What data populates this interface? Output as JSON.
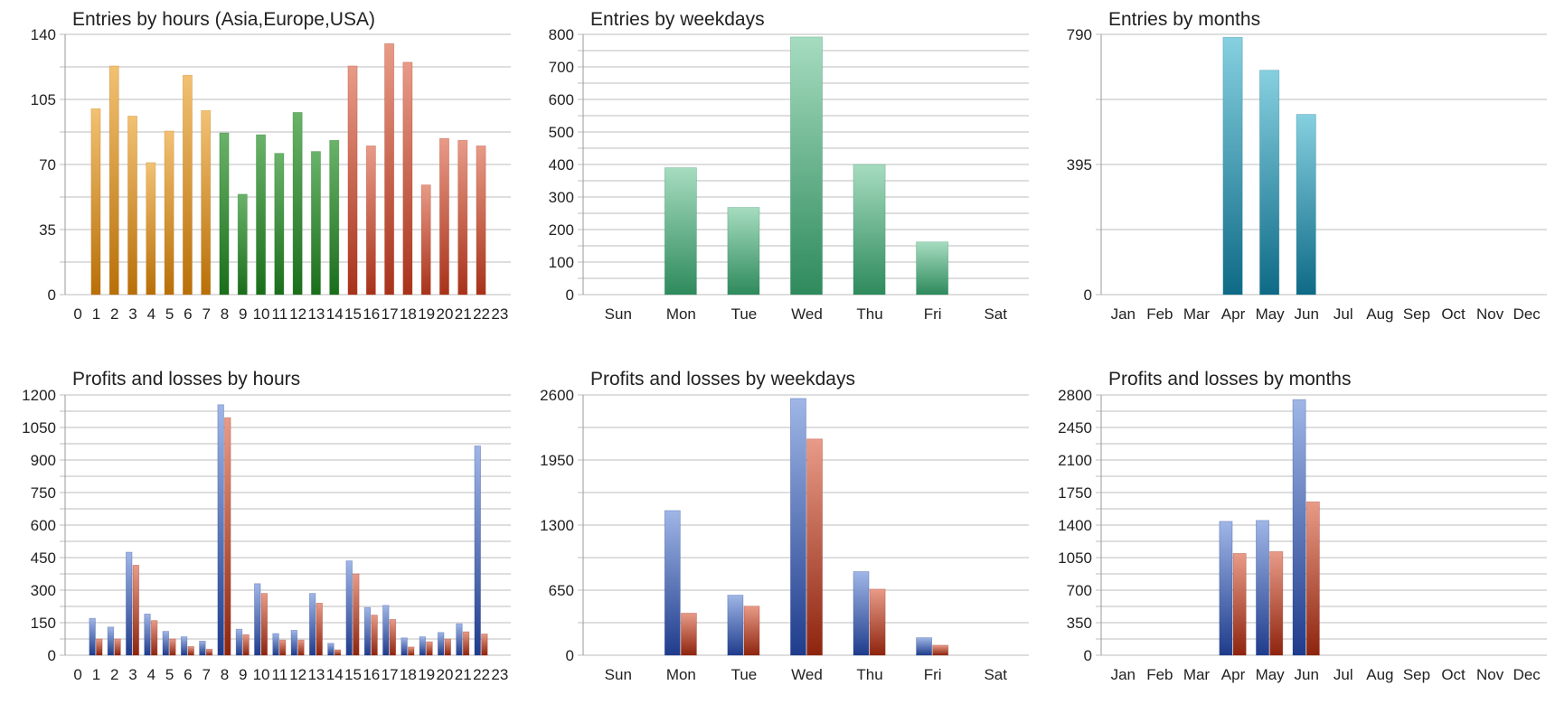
{
  "chart_data": [
    {
      "id": "entries-hours",
      "type": "bar",
      "title": "Entries by hours (Asia,Europe,USA)",
      "categories": [
        "0",
        "1",
        "2",
        "3",
        "4",
        "5",
        "6",
        "7",
        "8",
        "9",
        "10",
        "11",
        "12",
        "13",
        "14",
        "15",
        "16",
        "17",
        "18",
        "19",
        "20",
        "21",
        "22",
        "23"
      ],
      "series": [
        {
          "values": [
            0,
            100,
            123,
            96,
            71,
            88,
            118,
            99,
            87,
            54,
            86,
            76,
            98,
            77,
            83,
            123,
            80,
            135,
            125,
            59,
            84,
            83,
            80,
            0
          ]
        }
      ],
      "category_colors": [
        "#f2c173",
        "#f2c173",
        "#f2c173",
        "#f2c173",
        "#f2c173",
        "#f2c173",
        "#f2c173",
        "#f2c173",
        "#6ab36a",
        "#6ab36a",
        "#6ab36a",
        "#6ab36a",
        "#6ab36a",
        "#6ab36a",
        "#6ab36a",
        "#e89b88",
        "#e89b88",
        "#e89b88",
        "#e89b88",
        "#e89b88",
        "#e89b88",
        "#e89b88",
        "#e89b88",
        "#e89b88"
      ],
      "category_colors_dark": [
        "#b86f08",
        "#b86f08",
        "#b86f08",
        "#b86f08",
        "#b86f08",
        "#b86f08",
        "#b86f08",
        "#b86f08",
        "#1a6e1a",
        "#1a6e1a",
        "#1a6e1a",
        "#1a6e1a",
        "#1a6e1a",
        "#1a6e1a",
        "#1a6e1a",
        "#a8321a",
        "#a8321a",
        "#a8321a",
        "#a8321a",
        "#a8321a",
        "#a8321a",
        "#a8321a",
        "#a8321a",
        "#a8321a"
      ],
      "yticks": [
        0,
        35,
        70,
        105,
        140
      ],
      "ylim": [
        0,
        140
      ],
      "grid": true
    },
    {
      "id": "entries-weekdays",
      "type": "bar",
      "title": "Entries by weekdays",
      "categories": [
        "Sun",
        "Mon",
        "Tue",
        "Wed",
        "Thu",
        "Fri",
        "Sat"
      ],
      "series": [
        {
          "values": [
            0,
            390,
            268,
            792,
            400,
            162,
            0
          ],
          "color_top": "#a6dcc0",
          "color_bottom": "#2e8a5c"
        }
      ],
      "yticks": [
        0,
        100,
        200,
        300,
        400,
        500,
        600,
        700,
        800
      ],
      "ylim": [
        0,
        800
      ],
      "grid": true
    },
    {
      "id": "entries-months",
      "type": "bar",
      "title": "Entries by months",
      "categories": [
        "Jan",
        "Feb",
        "Mar",
        "Apr",
        "May",
        "Jun",
        "Jul",
        "Aug",
        "Sep",
        "Oct",
        "Nov",
        "Dec"
      ],
      "series": [
        {
          "values": [
            0,
            0,
            0,
            781,
            681,
            547,
            0,
            0,
            0,
            0,
            0,
            0
          ],
          "color_top": "#86d0e0",
          "color_bottom": "#0e6a86"
        }
      ],
      "yticks": [
        0,
        395,
        790
      ],
      "ylim": [
        0,
        790
      ],
      "grid": true
    },
    {
      "id": "pl-hours",
      "type": "bar",
      "title": "Profits and losses by hours",
      "categories": [
        "0",
        "1",
        "2",
        "3",
        "4",
        "5",
        "6",
        "7",
        "8",
        "9",
        "10",
        "11",
        "12",
        "13",
        "14",
        "15",
        "16",
        "17",
        "18",
        "19",
        "20",
        "21",
        "22",
        "23"
      ],
      "series": [
        {
          "values": [
            0,
            170,
            130,
            475,
            190,
            110,
            85,
            65,
            1155,
            120,
            330,
            100,
            115,
            285,
            55,
            435,
            220,
            230,
            80,
            85,
            105,
            145,
            965,
            0
          ],
          "color_top": "#9fb6e6",
          "color_bottom": "#1f3c8c"
        },
        {
          "values": [
            0,
            75,
            75,
            415,
            160,
            75,
            40,
            28,
            1095,
            95,
            285,
            70,
            70,
            240,
            25,
            375,
            185,
            165,
            38,
            62,
            75,
            108,
            98,
            0
          ],
          "color_top": "#e89b88",
          "color_bottom": "#8e240e"
        }
      ],
      "yticks": [
        0,
        150,
        300,
        450,
        600,
        750,
        900,
        1050,
        1200
      ],
      "ylim": [
        0,
        1200
      ],
      "grid": true
    },
    {
      "id": "pl-weekdays",
      "type": "bar",
      "title": "Profits and losses by weekdays",
      "categories": [
        "Sun",
        "Mon",
        "Tue",
        "Wed",
        "Thu",
        "Fri",
        "Sat"
      ],
      "series": [
        {
          "values": [
            0,
            1445,
            600,
            2565,
            835,
            175,
            0
          ],
          "color_top": "#9fb6e6",
          "color_bottom": "#1f3c8c"
        },
        {
          "values": [
            0,
            420,
            490,
            2160,
            660,
            100,
            0
          ],
          "color_top": "#e89b88",
          "color_bottom": "#8e240e"
        }
      ],
      "yticks": [
        0,
        650,
        1300,
        1950,
        2600
      ],
      "ylim": [
        0,
        2600
      ],
      "grid": true
    },
    {
      "id": "pl-months",
      "type": "bar",
      "title": "Profits and losses by months",
      "categories": [
        "Jan",
        "Feb",
        "Mar",
        "Apr",
        "May",
        "Jun",
        "Jul",
        "Aug",
        "Sep",
        "Oct",
        "Nov",
        "Dec"
      ],
      "series": [
        {
          "values": [
            0,
            0,
            0,
            1440,
            1450,
            2750,
            0,
            0,
            0,
            0,
            0,
            0
          ],
          "color_top": "#9fb6e6",
          "color_bottom": "#1f3c8c"
        },
        {
          "values": [
            0,
            0,
            0,
            1095,
            1115,
            1650,
            0,
            0,
            0,
            0,
            0,
            0
          ],
          "color_top": "#e89b88",
          "color_bottom": "#8e240e"
        }
      ],
      "yticks": [
        0,
        350,
        700,
        1050,
        1400,
        1750,
        2100,
        2450,
        2800
      ],
      "ylim": [
        0,
        2800
      ],
      "grid": true
    }
  ]
}
